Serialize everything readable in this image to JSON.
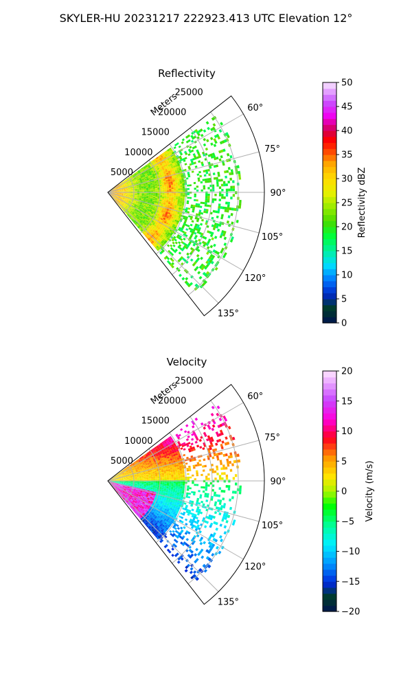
{
  "suptitle": "SKYLER-HU  20231217  222923.413 UTC Elevation 12°",
  "chart_data": [
    {
      "type": "polar-sector-heatmap",
      "title": "Reflectivity",
      "radial_axis_label": "Meters",
      "radial_ticks": [
        5000,
        10000,
        15000,
        20000,
        25000
      ],
      "radial_tick_labels": [
        "5000",
        "10000",
        "15000",
        "20000",
        "25000"
      ],
      "rmax": 30000,
      "azimuth_range_deg": [
        52,
        142
      ],
      "azimuth_ticks": [
        60,
        75,
        90,
        105,
        120,
        135
      ],
      "azimuth_tick_labels": [
        "60°",
        "75°",
        "90°",
        "105°",
        "120°",
        "135°"
      ],
      "grid": true,
      "colorbar": {
        "label": "Reflectivity dBZ",
        "range": [
          0,
          50
        ],
        "ticks": [
          0,
          5,
          10,
          15,
          20,
          25,
          30,
          35,
          40,
          45,
          50
        ],
        "tick_labels": [
          "0",
          "5",
          "10",
          "15",
          "20",
          "25",
          "30",
          "35",
          "40",
          "45",
          "50"
        ]
      },
      "field_description_values": {
        "typical_range_m": [
          0,
          26000
        ],
        "core_values_dBZ": [
          25,
          38
        ],
        "outer_echo_dBZ": [
          15,
          22
        ]
      }
    },
    {
      "type": "polar-sector-heatmap",
      "title": "Velocity",
      "radial_axis_label": "Meters",
      "radial_ticks": [
        5000,
        10000,
        15000,
        20000,
        25000
      ],
      "radial_tick_labels": [
        "5000",
        "10000",
        "15000",
        "20000",
        "25000"
      ],
      "rmax": 30000,
      "azimuth_range_deg": [
        52,
        142
      ],
      "azimuth_ticks": [
        60,
        75,
        90,
        105,
        120,
        135
      ],
      "azimuth_tick_labels": [
        "60°",
        "75°",
        "90°",
        "105°",
        "120°",
        "135°"
      ],
      "grid": true,
      "colorbar": {
        "label": "Velocity (m/s)",
        "range": [
          -20,
          20
        ],
        "ticks": [
          -20,
          -15,
          -10,
          -5,
          0,
          5,
          10,
          15,
          20
        ],
        "tick_labels": [
          "−20",
          "−15",
          "−10",
          "−5",
          "0",
          "5",
          "10",
          "15",
          "20"
        ]
      },
      "field_description_values": {
        "north_sector_m_s": [
          0,
          18
        ],
        "south_sector_m_s": [
          -14,
          -8
        ],
        "near_south_folded_m_s": [
          10,
          18
        ]
      }
    }
  ]
}
